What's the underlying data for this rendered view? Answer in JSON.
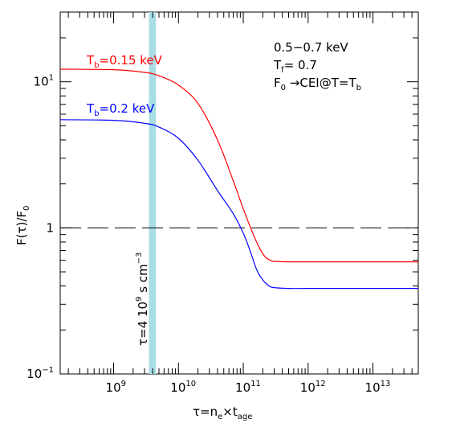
{
  "chart_data": {
    "type": "line",
    "x_scale": "log",
    "y_scale": "log",
    "xlim": [
      150000000.0,
      50000000000000.0
    ],
    "ylim": [
      0.1,
      30
    ],
    "xlabel": {
      "main": "τ=n",
      "sub1": "e",
      "mid": "×t",
      "sub2": "age"
    },
    "ylabel": {
      "main": "F(τ)/F",
      "sub": "0"
    },
    "x_ticks": [
      {
        "value": 1000000000.0,
        "base": "10",
        "exp": "9"
      },
      {
        "value": 10000000000.0,
        "base": "10",
        "exp": "10"
      },
      {
        "value": 100000000000.0,
        "base": "10",
        "exp": "11"
      },
      {
        "value": 1000000000000.0,
        "base": "10",
        "exp": "12"
      },
      {
        "value": 10000000000000.0,
        "base": "10",
        "exp": "13"
      }
    ],
    "y_ticks": [
      {
        "value": 0.1,
        "base": "10",
        "exp": "−1"
      },
      {
        "value": 1,
        "base": "1",
        "exp": ""
      },
      {
        "value": 10,
        "base": "10",
        "exp": "1"
      }
    ],
    "series": [
      {
        "name": "T_b=0.15 keV",
        "color": "#ff0000",
        "x": [
          150000000.0,
          1000000000.0,
          3000000000.0,
          5000000000.0,
          10000000000.0,
          20000000000.0,
          40000000000.0,
          70000000000.0,
          100000000000.0,
          140000000000.0,
          180000000000.0,
          220000000000.0,
          260000000000.0,
          300000000000.0,
          500000000000.0,
          1000000000000.0,
          10000000000000.0,
          50000000000000.0
        ],
        "y": [
          12.2,
          12.1,
          11.6,
          11.0,
          9.5,
          7.1,
          4.0,
          2.1,
          1.35,
          0.92,
          0.72,
          0.63,
          0.6,
          0.59,
          0.585,
          0.585,
          0.585,
          0.585
        ]
      },
      {
        "name": "T_b=0.2 keV",
        "color": "#0000ff",
        "x": [
          150000000.0,
          1000000000.0,
          3000000000.0,
          5000000000.0,
          10000000000.0,
          20000000000.0,
          40000000000.0,
          70000000000.0,
          100000000000.0,
          130000000000.0,
          160000000000.0,
          200000000000.0,
          250000000000.0,
          300000000000.0,
          500000000000.0,
          1000000000000.0,
          10000000000000.0,
          50000000000000.0
        ],
        "y": [
          5.5,
          5.45,
          5.2,
          4.9,
          4.1,
          2.9,
          1.8,
          1.25,
          0.92,
          0.68,
          0.52,
          0.44,
          0.4,
          0.39,
          0.385,
          0.385,
          0.385,
          0.385
        ]
      }
    ],
    "reference_line": {
      "y": 1,
      "style": "dashed"
    },
    "highlight_band": {
      "x_from": 3500000000.0,
      "x_to": 4500000000.0,
      "color": "#a8dde6"
    },
    "series_labels": [
      {
        "main": "T",
        "sub": "b",
        "rest": "=0.15  keV",
        "color": "#ff0000"
      },
      {
        "main": "T",
        "sub": "b",
        "rest": "=0.2  keV",
        "color": "#0000ff"
      }
    ],
    "annotations": {
      "line1": "0.5−0.7  keV",
      "line2_main": "T",
      "line2_sub": "f",
      "line2_rest": "=  0.7",
      "line3_main": "F",
      "line3_sub": "0",
      "line3_rest": " →CEI@T=T",
      "line3_sub2": "b"
    },
    "band_label": {
      "main": "τ=4 10",
      "exp1": "9",
      "rest": "  s cm",
      "exp2": "−3"
    }
  }
}
